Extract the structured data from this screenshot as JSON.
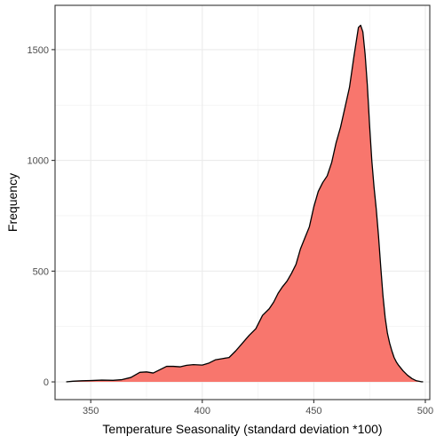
{
  "chart_data": {
    "type": "area",
    "title": "",
    "xlabel": "Temperature Seasonality (standard deviation *100)",
    "ylabel": "Frequency",
    "xlim": [
      334,
      502
    ],
    "ylim": [
      -80,
      1700
    ],
    "x_ticks": [
      350,
      400,
      450,
      500
    ],
    "y_ticks": [
      0,
      500,
      1000,
      1500
    ],
    "x_tick_labels": [
      "350",
      "400",
      "450",
      "500"
    ],
    "y_tick_labels": [
      "0",
      "500",
      "1000",
      "1500"
    ],
    "grid": true,
    "legend": "none",
    "fill_color": "#F8766D",
    "line_color": "#000000",
    "series": [
      {
        "x": [
          339,
          342,
          346,
          350,
          355,
          360,
          364,
          368,
          372,
          375,
          378,
          381,
          384,
          387,
          390,
          393,
          396,
          400,
          403,
          406,
          409,
          412,
          415,
          418,
          421,
          424,
          427,
          430,
          432,
          434,
          436,
          438,
          440,
          442,
          444,
          446,
          448,
          450,
          452,
          454,
          456,
          458,
          460,
          462,
          464,
          466,
          468,
          470,
          471,
          472,
          473,
          474,
          475,
          476,
          477,
          478,
          479,
          480,
          481,
          482,
          483,
          484,
          485,
          486,
          487,
          488,
          490,
          492,
          494,
          496,
          498,
          499
        ],
        "y": [
          0,
          3,
          5,
          6,
          8,
          7,
          10,
          20,
          43,
          45,
          40,
          55,
          70,
          70,
          68,
          75,
          78,
          76,
          85,
          100,
          105,
          110,
          140,
          175,
          210,
          240,
          300,
          330,
          360,
          400,
          430,
          455,
          490,
          530,
          600,
          650,
          700,
          790,
          860,
          900,
          930,
          990,
          1080,
          1150,
          1240,
          1330,
          1470,
          1600,
          1610,
          1580,
          1480,
          1340,
          1160,
          1000,
          880,
          780,
          660,
          520,
          390,
          290,
          220,
          175,
          140,
          110,
          90,
          75,
          50,
          30,
          15,
          5,
          1,
          0
        ]
      }
    ]
  }
}
